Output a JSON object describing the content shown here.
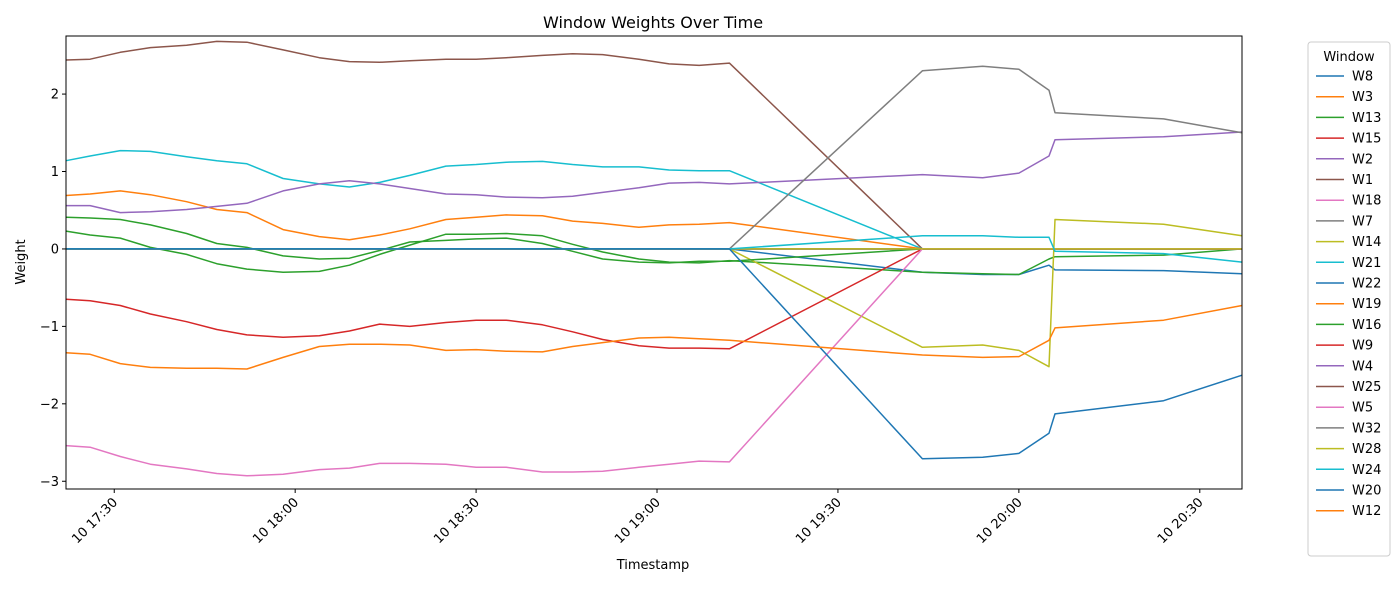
{
  "chart_data": {
    "type": "line",
    "title": "Window Weights Over Time",
    "xlabel": "Timestamp",
    "ylabel": "Weight",
    "ylim": [
      -3.1,
      2.75
    ],
    "xlim": [
      "2024-01-10 17:22",
      "2024-01-10 20:37"
    ],
    "x_tick_labels": [
      "10 17:30",
      "10 18:00",
      "10 18:30",
      "10 19:00",
      "10 19:30",
      "10 20:00",
      "10 20:30"
    ],
    "x_ticks": [
      "2024-01-10 17:30",
      "2024-01-10 18:00",
      "2024-01-10 18:30",
      "2024-01-10 19:00",
      "2024-01-10 19:30",
      "2024-01-10 20:00",
      "2024-01-10 20:30"
    ],
    "y_ticks": [
      -3,
      -2,
      -1,
      0,
      1,
      2
    ],
    "grid": false,
    "legend_title": "Window",
    "legend_position": "outside-right",
    "x": [
      "2024-01-10 17:22",
      "2024-01-10 17:26",
      "2024-01-10 17:31",
      "2024-01-10 17:36",
      "2024-01-10 17:42",
      "2024-01-10 17:47",
      "2024-01-10 17:52",
      "2024-01-10 17:58",
      "2024-01-10 18:04",
      "2024-01-10 18:09",
      "2024-01-10 18:14",
      "2024-01-10 18:19",
      "2024-01-10 18:25",
      "2024-01-10 18:30",
      "2024-01-10 18:35",
      "2024-01-10 18:41",
      "2024-01-10 18:46",
      "2024-01-10 18:51",
      "2024-01-10 18:57",
      "2024-01-10 19:02",
      "2024-01-10 19:07",
      "2024-01-10 19:12",
      "2024-01-10 19:44",
      "2024-01-10 19:54",
      "2024-01-10 20:00",
      "2024-01-10 20:05",
      "2024-01-10 20:06",
      "2024-01-10 20:24",
      "2024-01-10 20:37"
    ],
    "series": [
      {
        "name": "W8",
        "color": "#1f77b4",
        "values": [
          0,
          0,
          0,
          0,
          0,
          0,
          0,
          0,
          0,
          0,
          0,
          0,
          0,
          0,
          0,
          0,
          0,
          0,
          0,
          0,
          0,
          0,
          -0.3,
          -0.33,
          -0.33,
          -0.21,
          -0.27,
          -0.28,
          -0.32
        ]
      },
      {
        "name": "W3",
        "color": "#ff7f0e",
        "values": [
          0,
          0,
          0,
          0,
          0,
          0,
          0,
          0,
          0,
          0,
          0,
          0,
          0,
          0,
          0,
          0,
          0,
          0,
          0,
          0,
          0,
          0,
          0,
          0,
          0,
          0,
          0,
          0,
          0
        ]
      },
      {
        "name": "W13",
        "color": "#2ca02c",
        "values": [
          0.23,
          0.18,
          0.14,
          0.02,
          -0.07,
          -0.19,
          -0.26,
          -0.3,
          -0.29,
          -0.21,
          -0.07,
          0.05,
          0.19,
          0.19,
          0.2,
          0.17,
          0.06,
          -0.04,
          -0.13,
          -0.17,
          -0.18,
          -0.15,
          -0.3,
          -0.32,
          -0.33,
          -0.13,
          -0.1,
          -0.08,
          0
        ]
      },
      {
        "name": "W15",
        "color": "#d62728",
        "values": [
          0,
          0,
          0,
          0,
          0,
          0,
          0,
          0,
          0,
          0,
          0,
          0,
          0,
          0,
          0,
          0,
          0,
          0,
          0,
          0,
          0,
          0,
          0,
          0,
          0,
          0,
          0,
          0,
          0
        ]
      },
      {
        "name": "W2",
        "color": "#9467bd",
        "values": [
          0,
          0,
          0,
          0,
          0,
          0,
          0,
          0,
          0,
          0,
          0,
          0,
          0,
          0,
          0,
          0,
          0,
          0,
          0,
          0,
          0,
          0,
          0,
          0,
          0,
          0,
          0,
          0,
          0
        ]
      },
      {
        "name": "W1",
        "color": "#8c564b",
        "values": [
          2.44,
          2.45,
          2.54,
          2.6,
          2.63,
          2.68,
          2.67,
          2.57,
          2.47,
          2.42,
          2.41,
          2.43,
          2.45,
          2.45,
          2.47,
          2.5,
          2.52,
          2.51,
          2.45,
          2.39,
          2.37,
          2.4,
          0,
          0,
          0,
          0,
          0,
          0,
          0
        ]
      },
      {
        "name": "W18",
        "color": "#e377c2",
        "values": [
          0,
          0,
          0,
          0,
          0,
          0,
          0,
          0,
          0,
          0,
          0,
          0,
          0,
          0,
          0,
          0,
          0,
          0,
          0,
          0,
          0,
          0,
          0,
          0,
          0,
          0,
          0,
          0,
          0
        ]
      },
      {
        "name": "W7",
        "color": "#7f7f7f",
        "values": [
          0,
          0,
          0,
          0,
          0,
          0,
          0,
          0,
          0,
          0,
          0,
          0,
          0,
          0,
          0,
          0,
          0,
          0,
          0,
          0,
          0,
          0,
          0,
          0,
          0,
          0,
          0,
          0,
          0
        ]
      },
      {
        "name": "W14",
        "color": "#bcbd22",
        "values": [
          0,
          0,
          0,
          0,
          0,
          0,
          0,
          0,
          0,
          0,
          0,
          0,
          0,
          0,
          0,
          0,
          0,
          0,
          0,
          0,
          0,
          0,
          -1.27,
          -1.24,
          -1.31,
          -1.52,
          0.38,
          0.32,
          0.17
        ]
      },
      {
        "name": "W21",
        "color": "#17becf",
        "values": [
          1.14,
          1.2,
          1.27,
          1.26,
          1.19,
          1.14,
          1.1,
          0.91,
          0.84,
          0.8,
          0.86,
          0.95,
          1.07,
          1.09,
          1.12,
          1.13,
          1.09,
          1.06,
          1.06,
          1.02,
          1.01,
          1.01,
          0,
          0,
          0,
          0,
          0,
          0,
          0
        ]
      },
      {
        "name": "W22",
        "color": "#1f77b4",
        "values": [
          0,
          0,
          0,
          0,
          0,
          0,
          0,
          0,
          0,
          0,
          0,
          0,
          0,
          0,
          0,
          0,
          0,
          0,
          0,
          0,
          0,
          0,
          0,
          0,
          0,
          0,
          0,
          0,
          0
        ]
      },
      {
        "name": "W19",
        "color": "#ff7f0e",
        "values": [
          0.69,
          0.71,
          0.75,
          0.7,
          0.61,
          0.51,
          0.47,
          0.25,
          0.16,
          0.12,
          0.18,
          0.26,
          0.38,
          0.41,
          0.44,
          0.43,
          0.36,
          0.33,
          0.28,
          0.31,
          0.32,
          0.34,
          0,
          0,
          0,
          0,
          0,
          0,
          0
        ]
      },
      {
        "name": "W16",
        "color": "#2ca02c",
        "values": [
          0.41,
          0.4,
          0.38,
          0.31,
          0.2,
          0.07,
          0.02,
          -0.09,
          -0.13,
          -0.12,
          -0.02,
          0.09,
          0.11,
          0.13,
          0.14,
          0.07,
          -0.03,
          -0.13,
          -0.17,
          -0.18,
          -0.16,
          -0.16,
          0,
          0,
          0,
          0,
          0,
          0,
          0
        ]
      },
      {
        "name": "W9",
        "color": "#d62728",
        "values": [
          -0.65,
          -0.67,
          -0.73,
          -0.84,
          -0.94,
          -1.04,
          -1.11,
          -1.14,
          -1.12,
          -1.06,
          -0.97,
          -1.0,
          -0.95,
          -0.92,
          -0.92,
          -0.98,
          -1.07,
          -1.17,
          -1.25,
          -1.28,
          -1.28,
          -1.29,
          0,
          0,
          0,
          0,
          0,
          0,
          0
        ]
      },
      {
        "name": "W4",
        "color": "#9467bd",
        "values": [
          0.56,
          0.56,
          0.47,
          0.48,
          0.51,
          0.55,
          0.59,
          0.75,
          0.84,
          0.88,
          0.84,
          0.78,
          0.71,
          0.7,
          0.67,
          0.66,
          0.68,
          0.73,
          0.79,
          0.85,
          0.86,
          0.84,
          0.96,
          0.92,
          0.98,
          1.2,
          1.41,
          1.45,
          1.51
        ]
      },
      {
        "name": "W25",
        "color": "#8c564b",
        "values": [
          0,
          0,
          0,
          0,
          0,
          0,
          0,
          0,
          0,
          0,
          0,
          0,
          0,
          0,
          0,
          0,
          0,
          0,
          0,
          0,
          0,
          0,
          0,
          0,
          0,
          0,
          0,
          0,
          0
        ]
      },
      {
        "name": "W5",
        "color": "#e377c2",
        "values": [
          -2.54,
          -2.56,
          -2.68,
          -2.78,
          -2.84,
          -2.9,
          -2.93,
          -2.91,
          -2.85,
          -2.83,
          -2.77,
          -2.77,
          -2.78,
          -2.82,
          -2.82,
          -2.88,
          -2.88,
          -2.87,
          -2.82,
          -2.78,
          -2.74,
          -2.75,
          0,
          0,
          0,
          0,
          0,
          0,
          0
        ]
      },
      {
        "name": "W32",
        "color": "#7f7f7f",
        "values": [
          0,
          0,
          0,
          0,
          0,
          0,
          0,
          0,
          0,
          0,
          0,
          0,
          0,
          0,
          0,
          0,
          0,
          0,
          0,
          0,
          0,
          0,
          2.3,
          2.36,
          2.32,
          2.05,
          1.76,
          1.68,
          1.5
        ]
      },
      {
        "name": "W28",
        "color": "#bcbd22",
        "values": [
          0,
          0,
          0,
          0,
          0,
          0,
          0,
          0,
          0,
          0,
          0,
          0,
          0,
          0,
          0,
          0,
          0,
          0,
          0,
          0,
          0,
          0,
          0,
          0,
          0,
          0,
          0,
          0,
          0
        ]
      },
      {
        "name": "W24",
        "color": "#17becf",
        "values": [
          0,
          0,
          0,
          0,
          0,
          0,
          0,
          0,
          0,
          0,
          0,
          0,
          0,
          0,
          0,
          0,
          0,
          0,
          0,
          0,
          0,
          0,
          0.17,
          0.17,
          0.15,
          0.15,
          -0.03,
          -0.06,
          -0.17
        ]
      },
      {
        "name": "W20",
        "color": "#1f77b4",
        "values": [
          0,
          0,
          0,
          0,
          0,
          0,
          0,
          0,
          0,
          0,
          0,
          0,
          0,
          0,
          0,
          0,
          0,
          0,
          0,
          0,
          0,
          0,
          -2.71,
          -2.69,
          -2.64,
          -2.38,
          -2.13,
          -1.96,
          -1.63
        ]
      },
      {
        "name": "W12",
        "color": "#ff7f0e",
        "values": [
          -1.34,
          -1.36,
          -1.48,
          -1.53,
          -1.54,
          -1.54,
          -1.55,
          -1.4,
          -1.26,
          -1.23,
          -1.23,
          -1.24,
          -1.31,
          -1.3,
          -1.32,
          -1.33,
          -1.26,
          -1.21,
          -1.15,
          -1.14,
          -1.16,
          -1.18,
          -1.37,
          -1.4,
          -1.39,
          -1.18,
          -1.02,
          -0.92,
          -0.73
        ]
      }
    ]
  }
}
